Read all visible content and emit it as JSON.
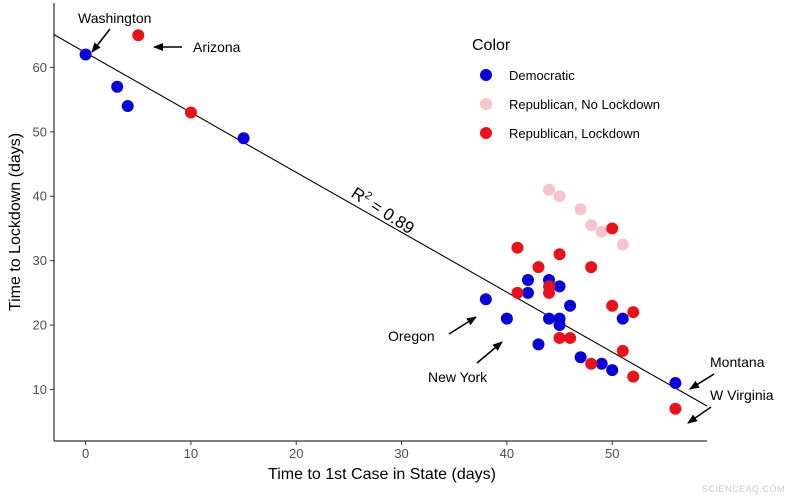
{
  "chart_data": {
    "type": "scatter",
    "xlabel": "Time to 1st Case in State (days)",
    "ylabel": "Time to Lockdown (days)",
    "xlim": [
      -3,
      59
    ],
    "ylim": [
      2,
      70
    ],
    "xticks": [
      0,
      10,
      20,
      30,
      40,
      50
    ],
    "yticks": [
      10,
      20,
      30,
      40,
      50,
      60
    ],
    "grid": false,
    "legend": {
      "title": "Color",
      "position": "top-right"
    },
    "series": [
      {
        "name": "Democratic",
        "color": "#0a00d6",
        "points": [
          [
            0,
            62
          ],
          [
            3,
            57
          ],
          [
            4,
            54
          ],
          [
            15,
            49
          ],
          [
            38,
            24
          ],
          [
            40,
            21
          ],
          [
            42,
            27
          ],
          [
            42,
            25
          ],
          [
            43,
            17
          ],
          [
            44,
            27
          ],
          [
            44,
            21
          ],
          [
            45,
            26
          ],
          [
            45,
            21
          ],
          [
            45,
            20
          ],
          [
            46,
            23
          ],
          [
            47,
            15
          ],
          [
            49,
            14
          ],
          [
            50,
            13
          ],
          [
            51,
            21
          ],
          [
            56,
            11
          ]
        ]
      },
      {
        "name": "Republican, No Lockdown",
        "color": "#f7c3cc",
        "points": [
          [
            44,
            41
          ],
          [
            45,
            40
          ],
          [
            47,
            38
          ],
          [
            48,
            35.5
          ],
          [
            49,
            34.5
          ],
          [
            51,
            32.5
          ]
        ]
      },
      {
        "name": "Republican, Lockdown",
        "color": "#e8121c",
        "points": [
          [
            5,
            65
          ],
          [
            10,
            53
          ],
          [
            41,
            32
          ],
          [
            41,
            25
          ],
          [
            43,
            29
          ],
          [
            44,
            26
          ],
          [
            44,
            25
          ],
          [
            45,
            31
          ],
          [
            45,
            18
          ],
          [
            46,
            18
          ],
          [
            48,
            29
          ],
          [
            48,
            14
          ],
          [
            50,
            35
          ],
          [
            50,
            23
          ],
          [
            51,
            16
          ],
          [
            52,
            22
          ],
          [
            52,
            12
          ],
          [
            56,
            7
          ]
        ]
      }
    ],
    "trendline": {
      "x": [
        -3,
        59
      ],
      "intercept": 62.3,
      "slope": -0.93
    },
    "annotations": {
      "r2_base": "R",
      "r2_sup": "2",
      "r2_rest": " = 0.89",
      "labels": [
        {
          "text": "Washington",
          "x": 0,
          "y": 62
        },
        {
          "text": "Arizona",
          "x": 5,
          "y": 65
        },
        {
          "text": "Oregon",
          "x": 38,
          "y": 24
        },
        {
          "text": "New York",
          "x": 40,
          "y": 21
        },
        {
          "text": "Montana",
          "x": 56,
          "y": 11
        },
        {
          "text": "W Virginia",
          "x": 56,
          "y": 7
        }
      ]
    },
    "watermark": "SCIENCEAQ.COM"
  }
}
